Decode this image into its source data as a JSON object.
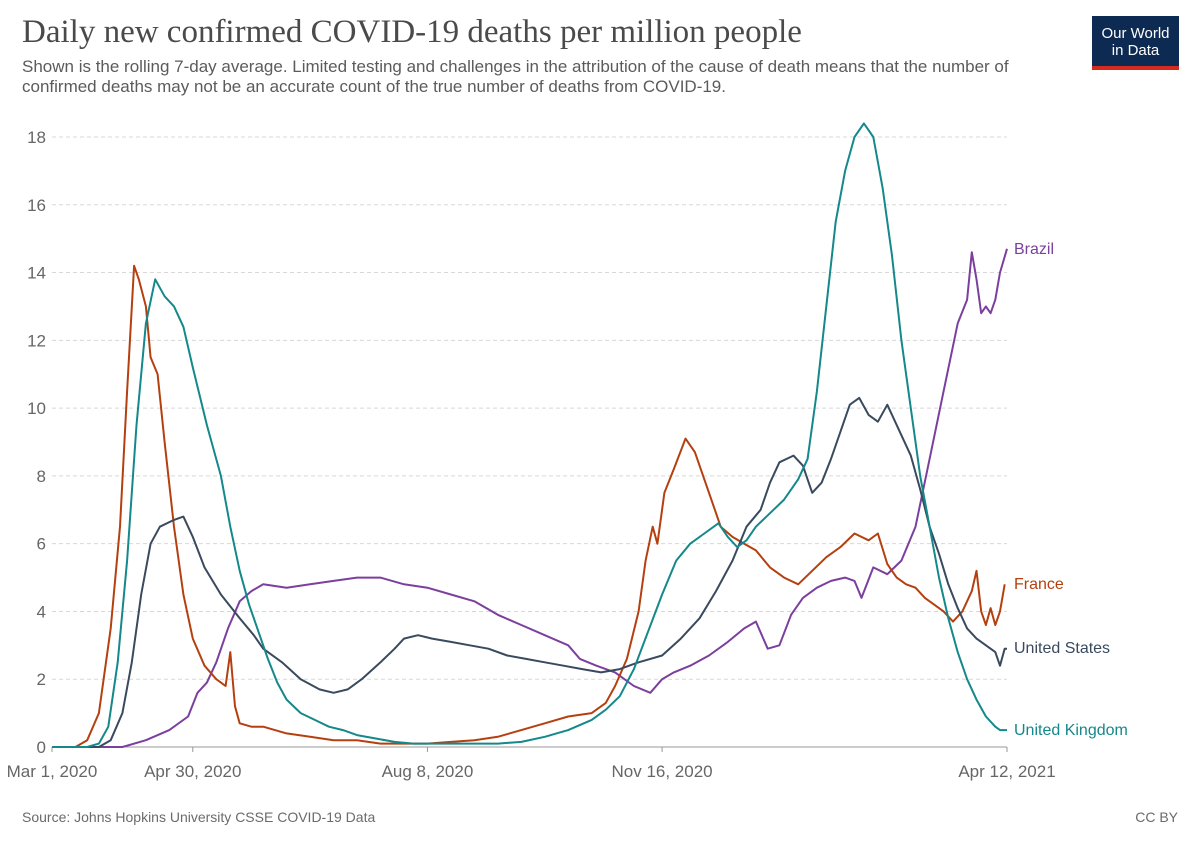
{
  "header": {
    "title": "Daily new confirmed COVID-19 deaths per million people",
    "subtitle": "Shown is the rolling 7-day average. Limited testing and challenges in the attribution of the cause of death means that the number of confirmed deaths may not be an accurate count of the true number of deaths from COVID-19.",
    "logo_line1": "Our World",
    "logo_line2": "in Data"
  },
  "footer": {
    "source": "Source: Johns Hopkins University CSSE COVID-19 Data",
    "license": "CC BY"
  },
  "colors": {
    "brazil": "#7b3f9e",
    "france": "#b5400f",
    "united_states": "#3a4a5e",
    "united_kingdom": "#14888a",
    "grid": "#d8d8d8",
    "logo_bg": "#0d2a52",
    "logo_bar": "#d52b1e"
  },
  "chart_data": {
    "type": "line",
    "title": "Daily new confirmed COVID-19 deaths per million people",
    "xlabel": "",
    "ylabel": "",
    "x_unit": "days since Mar 1, 2020",
    "xlim": [
      0,
      407
    ],
    "ylim": [
      0,
      18
    ],
    "yticks": [
      0,
      2,
      4,
      6,
      8,
      10,
      12,
      14,
      16,
      18
    ],
    "xticks": [
      {
        "day": 0,
        "label": "Mar 1, 2020"
      },
      {
        "day": 60,
        "label": "Apr 30, 2020"
      },
      {
        "day": 160,
        "label": "Aug 8, 2020"
      },
      {
        "day": 260,
        "label": "Nov 16, 2020"
      },
      {
        "day": 407,
        "label": "Apr 12, 2021"
      }
    ],
    "grid": true,
    "series": [
      {
        "name": "Brazil",
        "color": "#7b3f9e",
        "points": [
          [
            0,
            0
          ],
          [
            30,
            0
          ],
          [
            40,
            0.2
          ],
          [
            50,
            0.5
          ],
          [
            58,
            0.9
          ],
          [
            62,
            1.6
          ],
          [
            66,
            1.9
          ],
          [
            70,
            2.5
          ],
          [
            75,
            3.5
          ],
          [
            80,
            4.3
          ],
          [
            85,
            4.6
          ],
          [
            90,
            4.8
          ],
          [
            100,
            4.7
          ],
          [
            110,
            4.8
          ],
          [
            120,
            4.9
          ],
          [
            130,
            5.0
          ],
          [
            140,
            5.0
          ],
          [
            150,
            4.8
          ],
          [
            160,
            4.7
          ],
          [
            170,
            4.5
          ],
          [
            180,
            4.3
          ],
          [
            190,
            3.9
          ],
          [
            200,
            3.6
          ],
          [
            210,
            3.3
          ],
          [
            220,
            3.0
          ],
          [
            225,
            2.6
          ],
          [
            232,
            2.4
          ],
          [
            240,
            2.2
          ],
          [
            248,
            1.8
          ],
          [
            255,
            1.6
          ],
          [
            260,
            2.0
          ],
          [
            265,
            2.2
          ],
          [
            272,
            2.4
          ],
          [
            280,
            2.7
          ],
          [
            288,
            3.1
          ],
          [
            295,
            3.5
          ],
          [
            300,
            3.7
          ],
          [
            305,
            2.9
          ],
          [
            310,
            3.0
          ],
          [
            315,
            3.9
          ],
          [
            320,
            4.4
          ],
          [
            326,
            4.7
          ],
          [
            332,
            4.9
          ],
          [
            338,
            5.0
          ],
          [
            342,
            4.9
          ],
          [
            345,
            4.4
          ],
          [
            350,
            5.3
          ],
          [
            356,
            5.1
          ],
          [
            362,
            5.5
          ],
          [
            368,
            6.5
          ],
          [
            374,
            8.5
          ],
          [
            380,
            10.5
          ],
          [
            386,
            12.5
          ],
          [
            390,
            13.2
          ],
          [
            392,
            14.6
          ],
          [
            394,
            13.8
          ],
          [
            396,
            12.8
          ],
          [
            398,
            13.0
          ],
          [
            400,
            12.8
          ],
          [
            402,
            13.2
          ],
          [
            404,
            14.0
          ],
          [
            407,
            14.7
          ]
        ]
      },
      {
        "name": "France",
        "color": "#b5400f",
        "points": [
          [
            0,
            0
          ],
          [
            10,
            0
          ],
          [
            15,
            0.2
          ],
          [
            20,
            1.0
          ],
          [
            25,
            3.5
          ],
          [
            29,
            6.5
          ],
          [
            32,
            10.5
          ],
          [
            35,
            14.2
          ],
          [
            37,
            13.8
          ],
          [
            40,
            13.0
          ],
          [
            42,
            11.5
          ],
          [
            45,
            11.0
          ],
          [
            48,
            9.0
          ],
          [
            52,
            6.5
          ],
          [
            56,
            4.5
          ],
          [
            60,
            3.2
          ],
          [
            65,
            2.4
          ],
          [
            70,
            2.0
          ],
          [
            74,
            1.8
          ],
          [
            76,
            2.8
          ],
          [
            78,
            1.2
          ],
          [
            80,
            0.7
          ],
          [
            85,
            0.6
          ],
          [
            90,
            0.6
          ],
          [
            100,
            0.4
          ],
          [
            110,
            0.3
          ],
          [
            120,
            0.2
          ],
          [
            130,
            0.2
          ],
          [
            140,
            0.1
          ],
          [
            150,
            0.1
          ],
          [
            160,
            0.1
          ],
          [
            170,
            0.15
          ],
          [
            180,
            0.2
          ],
          [
            190,
            0.3
          ],
          [
            200,
            0.5
          ],
          [
            210,
            0.7
          ],
          [
            220,
            0.9
          ],
          [
            230,
            1.0
          ],
          [
            236,
            1.3
          ],
          [
            240,
            1.8
          ],
          [
            245,
            2.6
          ],
          [
            250,
            4.0
          ],
          [
            253,
            5.5
          ],
          [
            256,
            6.5
          ],
          [
            258,
            6.0
          ],
          [
            261,
            7.5
          ],
          [
            265,
            8.2
          ],
          [
            270,
            9.1
          ],
          [
            274,
            8.7
          ],
          [
            280,
            7.5
          ],
          [
            285,
            6.5
          ],
          [
            290,
            6.2
          ],
          [
            295,
            6.0
          ],
          [
            300,
            5.8
          ],
          [
            306,
            5.3
          ],
          [
            312,
            5.0
          ],
          [
            318,
            4.8
          ],
          [
            324,
            5.2
          ],
          [
            330,
            5.6
          ],
          [
            336,
            5.9
          ],
          [
            342,
            6.3
          ],
          [
            348,
            6.1
          ],
          [
            352,
            6.3
          ],
          [
            356,
            5.4
          ],
          [
            360,
            5.0
          ],
          [
            364,
            4.8
          ],
          [
            368,
            4.7
          ],
          [
            372,
            4.4
          ],
          [
            376,
            4.2
          ],
          [
            380,
            4.0
          ],
          [
            384,
            3.7
          ],
          [
            388,
            4.0
          ],
          [
            392,
            4.6
          ],
          [
            394,
            5.2
          ],
          [
            396,
            4.0
          ],
          [
            398,
            3.6
          ],
          [
            400,
            4.1
          ],
          [
            402,
            3.6
          ],
          [
            404,
            4.0
          ],
          [
            406,
            4.8
          ]
        ]
      },
      {
        "name": "United States",
        "color": "#3a4a5e",
        "points": [
          [
            0,
            0
          ],
          [
            20,
            0
          ],
          [
            25,
            0.2
          ],
          [
            30,
            1.0
          ],
          [
            34,
            2.5
          ],
          [
            38,
            4.5
          ],
          [
            42,
            6.0
          ],
          [
            46,
            6.5
          ],
          [
            52,
            6.7
          ],
          [
            56,
            6.8
          ],
          [
            60,
            6.2
          ],
          [
            65,
            5.3
          ],
          [
            72,
            4.5
          ],
          [
            80,
            3.8
          ],
          [
            86,
            3.3
          ],
          [
            90,
            2.9
          ],
          [
            98,
            2.5
          ],
          [
            106,
            2.0
          ],
          [
            114,
            1.7
          ],
          [
            120,
            1.6
          ],
          [
            126,
            1.7
          ],
          [
            132,
            2.0
          ],
          [
            140,
            2.5
          ],
          [
            146,
            2.9
          ],
          [
            150,
            3.2
          ],
          [
            156,
            3.3
          ],
          [
            162,
            3.2
          ],
          [
            170,
            3.1
          ],
          [
            178,
            3.0
          ],
          [
            186,
            2.9
          ],
          [
            194,
            2.7
          ],
          [
            202,
            2.6
          ],
          [
            210,
            2.5
          ],
          [
            218,
            2.4
          ],
          [
            226,
            2.3
          ],
          [
            234,
            2.2
          ],
          [
            242,
            2.3
          ],
          [
            250,
            2.5
          ],
          [
            260,
            2.7
          ],
          [
            268,
            3.2
          ],
          [
            276,
            3.8
          ],
          [
            283,
            4.6
          ],
          [
            290,
            5.5
          ],
          [
            296,
            6.5
          ],
          [
            302,
            7.0
          ],
          [
            306,
            7.8
          ],
          [
            310,
            8.4
          ],
          [
            316,
            8.6
          ],
          [
            320,
            8.3
          ],
          [
            324,
            7.5
          ],
          [
            328,
            7.8
          ],
          [
            332,
            8.5
          ],
          [
            336,
            9.3
          ],
          [
            340,
            10.1
          ],
          [
            344,
            10.3
          ],
          [
            348,
            9.8
          ],
          [
            352,
            9.6
          ],
          [
            356,
            10.1
          ],
          [
            360,
            9.5
          ],
          [
            366,
            8.6
          ],
          [
            370,
            7.6
          ],
          [
            374,
            6.5
          ],
          [
            378,
            5.7
          ],
          [
            382,
            4.8
          ],
          [
            386,
            4.1
          ],
          [
            390,
            3.5
          ],
          [
            394,
            3.2
          ],
          [
            398,
            3.0
          ],
          [
            402,
            2.8
          ],
          [
            404,
            2.4
          ],
          [
            406,
            2.9
          ],
          [
            407,
            2.9
          ]
        ]
      },
      {
        "name": "United Kingdom",
        "color": "#14888a",
        "points": [
          [
            0,
            0
          ],
          [
            15,
            0
          ],
          [
            20,
            0.1
          ],
          [
            24,
            0.6
          ],
          [
            28,
            2.5
          ],
          [
            32,
            5.5
          ],
          [
            36,
            9.5
          ],
          [
            40,
            12.5
          ],
          [
            44,
            13.8
          ],
          [
            48,
            13.3
          ],
          [
            52,
            13.0
          ],
          [
            56,
            12.4
          ],
          [
            60,
            11.2
          ],
          [
            66,
            9.5
          ],
          [
            72,
            8.0
          ],
          [
            76,
            6.5
          ],
          [
            80,
            5.2
          ],
          [
            84,
            4.2
          ],
          [
            88,
            3.4
          ],
          [
            92,
            2.6
          ],
          [
            96,
            1.9
          ],
          [
            100,
            1.4
          ],
          [
            106,
            1.0
          ],
          [
            112,
            0.8
          ],
          [
            118,
            0.6
          ],
          [
            124,
            0.5
          ],
          [
            130,
            0.35
          ],
          [
            138,
            0.25
          ],
          [
            146,
            0.15
          ],
          [
            154,
            0.1
          ],
          [
            162,
            0.1
          ],
          [
            170,
            0.1
          ],
          [
            180,
            0.1
          ],
          [
            190,
            0.1
          ],
          [
            200,
            0.15
          ],
          [
            210,
            0.3
          ],
          [
            220,
            0.5
          ],
          [
            230,
            0.8
          ],
          [
            236,
            1.1
          ],
          [
            242,
            1.5
          ],
          [
            248,
            2.3
          ],
          [
            254,
            3.4
          ],
          [
            260,
            4.5
          ],
          [
            266,
            5.5
          ],
          [
            272,
            6.0
          ],
          [
            278,
            6.3
          ],
          [
            284,
            6.6
          ],
          [
            288,
            6.2
          ],
          [
            292,
            5.9
          ],
          [
            296,
            6.1
          ],
          [
            300,
            6.5
          ],
          [
            306,
            6.9
          ],
          [
            312,
            7.3
          ],
          [
            318,
            7.9
          ],
          [
            322,
            8.5
          ],
          [
            326,
            10.5
          ],
          [
            330,
            13.0
          ],
          [
            334,
            15.5
          ],
          [
            338,
            17.0
          ],
          [
            342,
            18.0
          ],
          [
            346,
            18.4
          ],
          [
            350,
            18.0
          ],
          [
            354,
            16.5
          ],
          [
            358,
            14.5
          ],
          [
            362,
            12.0
          ],
          [
            366,
            10.0
          ],
          [
            370,
            8.0
          ],
          [
            374,
            6.5
          ],
          [
            378,
            5.0
          ],
          [
            382,
            3.8
          ],
          [
            386,
            2.8
          ],
          [
            390,
            2.0
          ],
          [
            394,
            1.4
          ],
          [
            398,
            0.9
          ],
          [
            402,
            0.6
          ],
          [
            404,
            0.5
          ],
          [
            407,
            0.5
          ]
        ]
      }
    ]
  }
}
